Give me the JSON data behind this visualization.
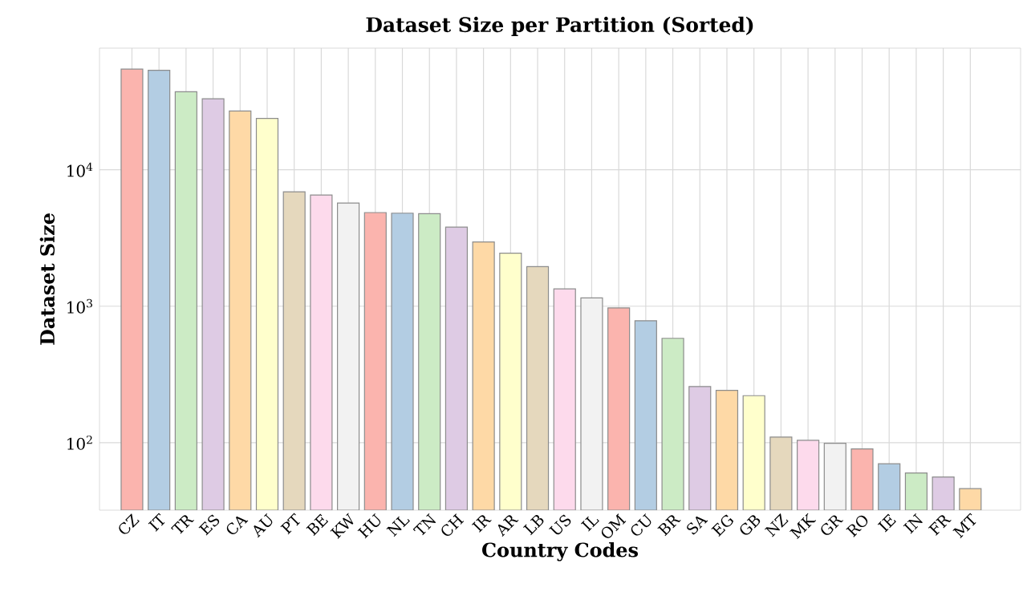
{
  "chart_data": {
    "type": "bar",
    "title": "Dataset Size per Partition (Sorted)",
    "xlabel": "Country Codes",
    "ylabel": "Dataset Size",
    "categories": [
      "CZ",
      "IT",
      "TR",
      "ES",
      "CA",
      "AU",
      "PT",
      "BE",
      "KW",
      "HU",
      "NL",
      "TN",
      "CH",
      "IR",
      "AR",
      "LB",
      "US",
      "IL",
      "OM",
      "CU",
      "BR",
      "SA",
      "EG",
      "GB",
      "NZ",
      "MK",
      "GR",
      "RO",
      "IE",
      "IN",
      "FR",
      "MT"
    ],
    "values": [
      54700,
      53600,
      37400,
      33200,
      27000,
      23800,
      6900,
      6540,
      5710,
      4860,
      4810,
      4770,
      3800,
      2960,
      2450,
      1950,
      1340,
      1150,
      973,
      783,
      582,
      258,
      242,
      221,
      110,
      104,
      99,
      90,
      70,
      60,
      56,
      46
    ],
    "colors": [
      "#fbb4ae",
      "#b3cde3",
      "#ccebc5",
      "#decbe4",
      "#fed9a6",
      "#ffffcc",
      "#e5d8bd",
      "#fddaec",
      "#f2f2f2",
      "#fbb4ae",
      "#b3cde3",
      "#ccebc5",
      "#decbe4",
      "#fed9a6",
      "#ffffcc",
      "#e5d8bd",
      "#fddaec",
      "#f2f2f2",
      "#fbb4ae",
      "#b3cde3",
      "#ccebc5",
      "#decbe4",
      "#fed9a6",
      "#ffffcc",
      "#e5d8bd",
      "#fddaec",
      "#f2f2f2",
      "#fbb4ae",
      "#b3cde3",
      "#ccebc5",
      "#decbe4",
      "#fed9a6"
    ],
    "log": true,
    "grid": true,
    "ylim": [
      32,
      78000
    ],
    "yticks": [
      {
        "value": 100,
        "label": "10$^{2}$"
      },
      {
        "value": 1000,
        "label": "10$^{3}$"
      },
      {
        "value": 10000,
        "label": "10$^{4}$"
      }
    ]
  }
}
